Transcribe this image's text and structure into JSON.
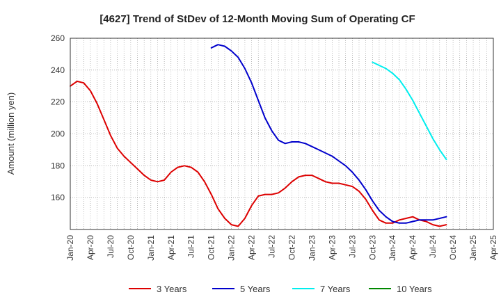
{
  "chart_data": {
    "type": "line",
    "title": "[4627]  Trend of StDev of 12-Month Moving Sum of Operating CF",
    "ylabel": "Amount (million yen)",
    "xlabel": "",
    "ylim": [
      140,
      260
    ],
    "yticks": [
      160,
      180,
      200,
      220,
      240,
      260
    ],
    "x_start": "Jan-20",
    "x_end": "Apr-25",
    "xticks": [
      "Jan-20",
      "Apr-20",
      "Jul-20",
      "Oct-20",
      "Jan-21",
      "Apr-21",
      "Jul-21",
      "Oct-21",
      "Jan-22",
      "Apr-22",
      "Jul-22",
      "Oct-22",
      "Jan-23",
      "Apr-23",
      "Jul-23",
      "Oct-23",
      "Jan-24",
      "Apr-24",
      "Jul-24",
      "Oct-24",
      "Jan-25",
      "Apr-25"
    ],
    "grid": true,
    "legend_position": "bottom",
    "series": [
      {
        "name": "3 Years",
        "color": "#dd0000",
        "start": "Jan-20",
        "values": [
          230,
          233,
          232,
          227,
          219,
          209,
          199,
          191,
          186,
          182,
          178,
          174,
          171,
          170,
          171,
          176,
          179,
          180,
          179,
          176,
          170,
          162,
          153,
          147,
          143,
          142,
          147,
          155,
          161,
          162,
          162,
          163,
          166,
          170,
          173,
          174,
          174,
          172,
          170,
          169,
          169,
          168,
          167,
          164,
          159,
          152,
          146,
          144,
          144,
          146,
          147,
          148,
          146,
          145,
          143,
          142,
          143
        ]
      },
      {
        "name": "5 Years",
        "color": "#0000cc",
        "start": "Oct-21",
        "values": [
          254,
          256,
          255,
          252,
          248,
          241,
          232,
          221,
          210,
          202,
          196,
          194,
          195,
          195,
          194,
          192,
          190,
          188,
          186,
          183,
          180,
          176,
          171,
          165,
          158,
          152,
          148,
          145,
          144,
          144,
          145,
          146,
          146,
          146,
          147,
          148
        ]
      },
      {
        "name": "7 Years",
        "color": "#00eeee",
        "start": "Oct-23",
        "values": [
          245,
          243,
          241,
          238,
          234,
          228,
          221,
          213,
          205,
          197,
          190,
          184
        ]
      },
      {
        "name": "10 Years",
        "color": "#008800",
        "start": "Oct-23",
        "values": []
      }
    ]
  }
}
